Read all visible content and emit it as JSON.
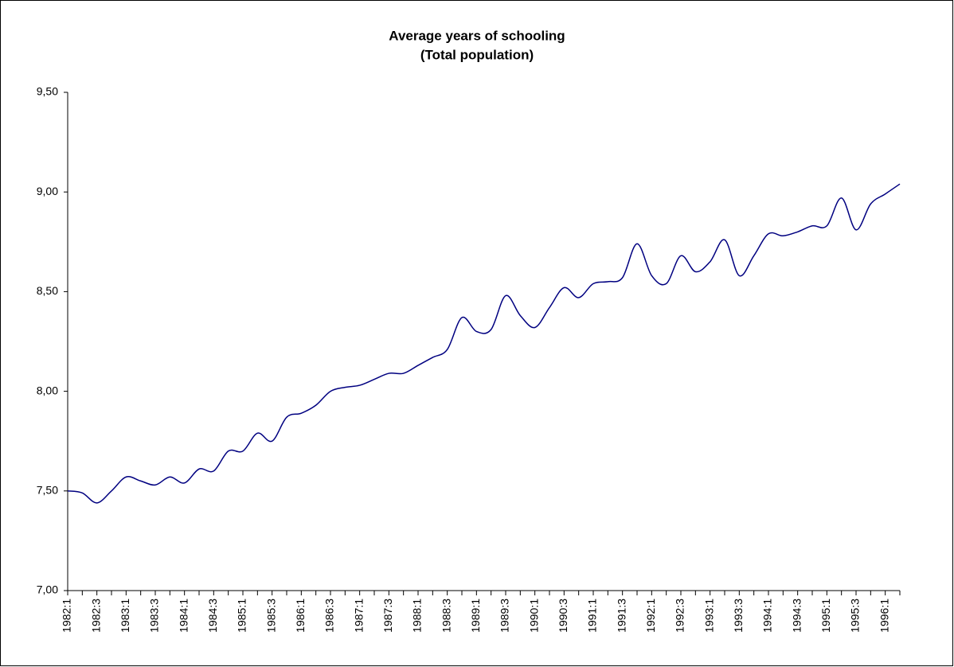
{
  "chart_data": {
    "type": "line",
    "title": "Average years of schooling",
    "subtitle": "(Total population)",
    "categories": [
      "1982:1",
      null,
      "1982:3",
      null,
      "1983:1",
      null,
      "1983:3",
      null,
      "1984:1",
      null,
      "1984:3",
      null,
      "1985:1",
      null,
      "1985:3",
      null,
      "1986:1",
      null,
      "1986:3",
      null,
      "1987:1",
      null,
      "1987:3",
      null,
      "1988:1",
      null,
      "1988:3",
      null,
      "1989:1",
      null,
      "1989:3",
      null,
      "1990:1",
      null,
      "1990:3",
      null,
      "1991:1",
      null,
      "1991:3",
      null,
      "1992:1",
      null,
      "1992:3",
      null,
      "1993:1",
      null,
      "1993:3",
      null,
      "1994:1",
      null,
      "1994:3",
      null,
      "1995:1",
      null,
      "1995:3",
      null,
      "1996:1",
      null
    ],
    "values": [
      7.5,
      7.49,
      7.44,
      7.5,
      7.57,
      7.55,
      7.53,
      7.57,
      7.54,
      7.61,
      7.6,
      7.7,
      7.7,
      7.79,
      7.75,
      7.87,
      7.89,
      7.93,
      8.0,
      8.02,
      8.03,
      8.06,
      8.09,
      8.09,
      8.13,
      8.17,
      8.21,
      8.37,
      8.3,
      8.31,
      8.48,
      8.38,
      8.32,
      8.42,
      8.52,
      8.47,
      8.54,
      8.55,
      8.57,
      8.74,
      8.58,
      8.54,
      8.68,
      8.6,
      8.65,
      8.76,
      8.58,
      8.68,
      8.79,
      8.78,
      8.8,
      8.83,
      8.83,
      8.97,
      8.81,
      8.94,
      8.99,
      9.04
    ],
    "color": "#000080",
    "ylim": [
      7,
      9.5
    ],
    "yticks": [
      {
        "value": 7,
        "label": "7,00"
      },
      {
        "value": 7.5,
        "label": "7,50"
      },
      {
        "value": 8,
        "label": "8,00"
      },
      {
        "value": 8.5,
        "label": "8,50"
      },
      {
        "value": 9,
        "label": "9,00"
      },
      {
        "value": 9.5,
        "label": "9,50"
      }
    ],
    "grid": false
  }
}
